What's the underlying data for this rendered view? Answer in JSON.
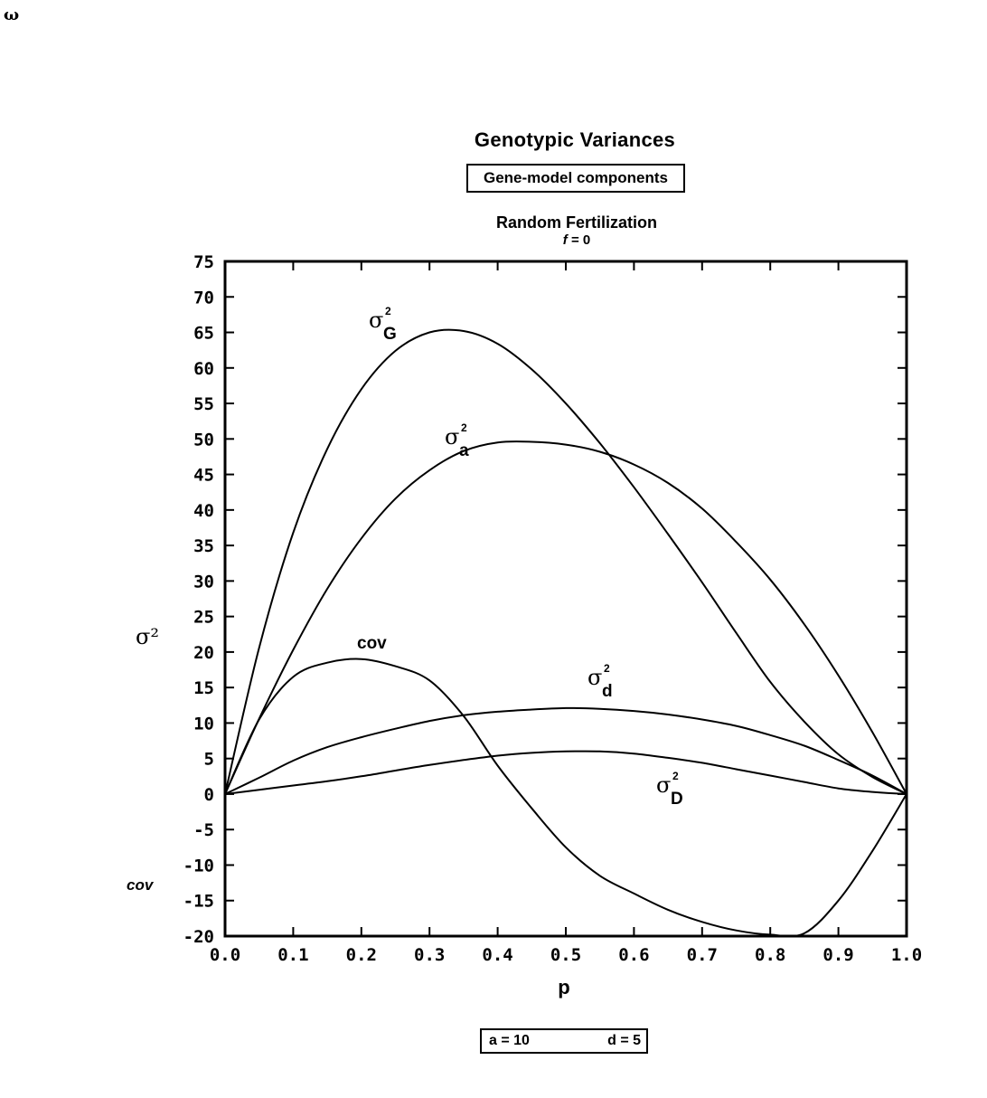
{
  "corner_mark": "ω",
  "chart_data": {
    "type": "line",
    "title": "Genotypic Variances",
    "subtitle": "Gene-model components",
    "mating_system": "Random Fertilization",
    "inbreeding_prefix": "f",
    "inbreeding_suffix": " = 0",
    "xlabel": "p",
    "ylabel": "σ²",
    "ylabel_secondary": "cov",
    "xlim": [
      0.0,
      1.0
    ],
    "ylim": [
      -20,
      75
    ],
    "x_ticks": [
      "0.0",
      "0.1",
      "0.2",
      "0.3",
      "0.4",
      "0.5",
      "0.6",
      "0.7",
      "0.8",
      "0.9",
      "1.0"
    ],
    "y_ticks": [
      "75",
      "70",
      "65",
      "60",
      "55",
      "50",
      "45",
      "40",
      "35",
      "30",
      "25",
      "20",
      "15",
      "10",
      "5",
      "0",
      "-5",
      "-10",
      "-15",
      "-20"
    ],
    "parameters": {
      "a_label": "a = 10",
      "d_label": "d = 5"
    },
    "x": [
      0.0,
      0.05,
      0.1,
      0.15,
      0.2,
      0.25,
      0.3,
      0.35,
      0.4,
      0.45,
      0.5,
      0.55,
      0.6,
      0.65,
      0.7,
      0.75,
      0.8,
      0.85,
      0.9,
      0.95,
      1.0
    ],
    "series": [
      {
        "name": "σ²G",
        "symbol": "σ",
        "sub": "G",
        "sup": "2",
        "values": [
          0,
          20.6,
          36.8,
          48.6,
          57,
          62.4,
          65,
          65.2,
          63.4,
          59.8,
          55,
          49.4,
          43.2,
          36.6,
          29.8,
          22.7,
          15.8,
          10.2,
          5.6,
          2.4,
          0
        ]
      },
      {
        "name": "σ²a",
        "symbol": "σ",
        "sub": "a",
        "sup": "2",
        "values": [
          0,
          10.6,
          20.3,
          28.9,
          36,
          41.6,
          45.6,
          48.3,
          49.5,
          49.6,
          49.2,
          48.2,
          46.4,
          43.8,
          40.2,
          35.5,
          30.2,
          23.9,
          16.7,
          8.7,
          0
        ]
      },
      {
        "name": "σ²d",
        "symbol": "σ",
        "sub": "d",
        "sup": "2",
        "values": [
          0,
          2.3,
          4.7,
          6.6,
          8,
          9.2,
          10.3,
          11.1,
          11.6,
          11.9,
          12.1,
          12,
          11.7,
          11.2,
          10.5,
          9.6,
          8.3,
          6.8,
          4.8,
          2.6,
          0
        ]
      },
      {
        "name": "σ²D",
        "symbol": "σ",
        "sub": "D",
        "sup": "2",
        "values": [
          0,
          0.6,
          1.2,
          1.8,
          2.5,
          3.3,
          4.1,
          4.8,
          5.4,
          5.8,
          6,
          6,
          5.7,
          5.1,
          4.4,
          3.5,
          2.6,
          1.7,
          0.8,
          0.3,
          0
        ]
      },
      {
        "name": "cov",
        "label": "cov",
        "values": [
          0,
          10.5,
          16.5,
          18.5,
          19,
          18,
          16,
          11,
          4,
          -2,
          -7.5,
          -11.5,
          -14,
          -16.3,
          -18,
          -19.2,
          -19.8,
          -19.6,
          -15,
          -8,
          0
        ]
      }
    ]
  }
}
